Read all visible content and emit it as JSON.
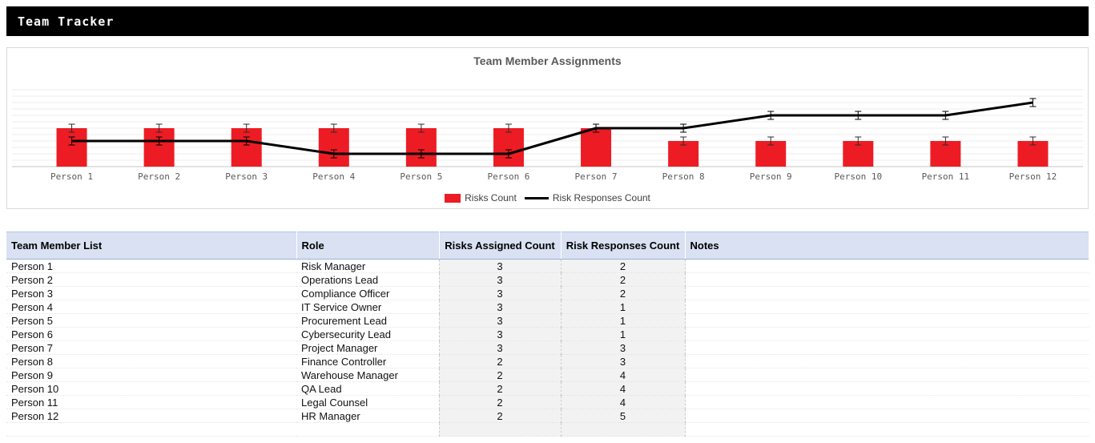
{
  "app": {
    "title": "Team Tracker"
  },
  "chart_data": {
    "type": "combo",
    "title": "Team Member Assignments",
    "categories": [
      "Person 1",
      "Person 2",
      "Person 3",
      "Person 4",
      "Person 5",
      "Person 6",
      "Person 7",
      "Person 8",
      "Person 9",
      "Person 10",
      "Person 11",
      "Person 12"
    ],
    "series": [
      {
        "name": "Risks Count",
        "type": "bar",
        "color": "#ed1c24",
        "values": [
          3,
          3,
          3,
          3,
          3,
          3,
          3,
          2,
          2,
          2,
          2,
          2
        ]
      },
      {
        "name": "Risk Responses Count",
        "type": "line",
        "color": "#000000",
        "values": [
          2,
          2,
          2,
          1,
          1,
          1,
          3,
          3,
          4,
          4,
          4,
          5
        ]
      }
    ],
    "ylim": [
      0,
      6
    ],
    "grid": true,
    "error_bars": true,
    "legend_position": "bottom",
    "axis_label_color": "#595959",
    "gridline_color": "#ececec"
  },
  "table": {
    "columns": [
      {
        "label": "Team Member List",
        "align": "left"
      },
      {
        "label": "Role",
        "align": "left"
      },
      {
        "label": "Risks Assigned Count",
        "align": "center"
      },
      {
        "label": "Risk Responses Count",
        "align": "center"
      },
      {
        "label": "Notes",
        "align": "left"
      }
    ],
    "rows": [
      {
        "member": "Person 1",
        "role": "Risk Manager",
        "risks": "3",
        "responses": "2",
        "notes": ""
      },
      {
        "member": "Person 2",
        "role": "Operations Lead",
        "risks": "3",
        "responses": "2",
        "notes": ""
      },
      {
        "member": "Person 3",
        "role": "Compliance Officer",
        "risks": "3",
        "responses": "2",
        "notes": ""
      },
      {
        "member": "Person 4",
        "role": "IT Service Owner",
        "risks": "3",
        "responses": "1",
        "notes": ""
      },
      {
        "member": "Person 5",
        "role": "Procurement Lead",
        "risks": "3",
        "responses": "1",
        "notes": ""
      },
      {
        "member": "Person 6",
        "role": "Cybersecurity Lead",
        "risks": "3",
        "responses": "1",
        "notes": ""
      },
      {
        "member": "Person 7",
        "role": "Project Manager",
        "risks": "3",
        "responses": "3",
        "notes": ""
      },
      {
        "member": "Person 8",
        "role": "Finance Controller",
        "risks": "2",
        "responses": "3",
        "notes": ""
      },
      {
        "member": "Person 9",
        "role": "Warehouse Manager",
        "risks": "2",
        "responses": "4",
        "notes": ""
      },
      {
        "member": "Person 10",
        "role": "QA Lead",
        "risks": "2",
        "responses": "4",
        "notes": ""
      },
      {
        "member": "Person 11",
        "role": "Legal Counsel",
        "risks": "2",
        "responses": "4",
        "notes": ""
      },
      {
        "member": "Person 12",
        "role": "HR Manager",
        "risks": "2",
        "responses": "5",
        "notes": ""
      },
      {
        "member": "",
        "role": "",
        "risks": "",
        "responses": "",
        "notes": ""
      }
    ]
  }
}
